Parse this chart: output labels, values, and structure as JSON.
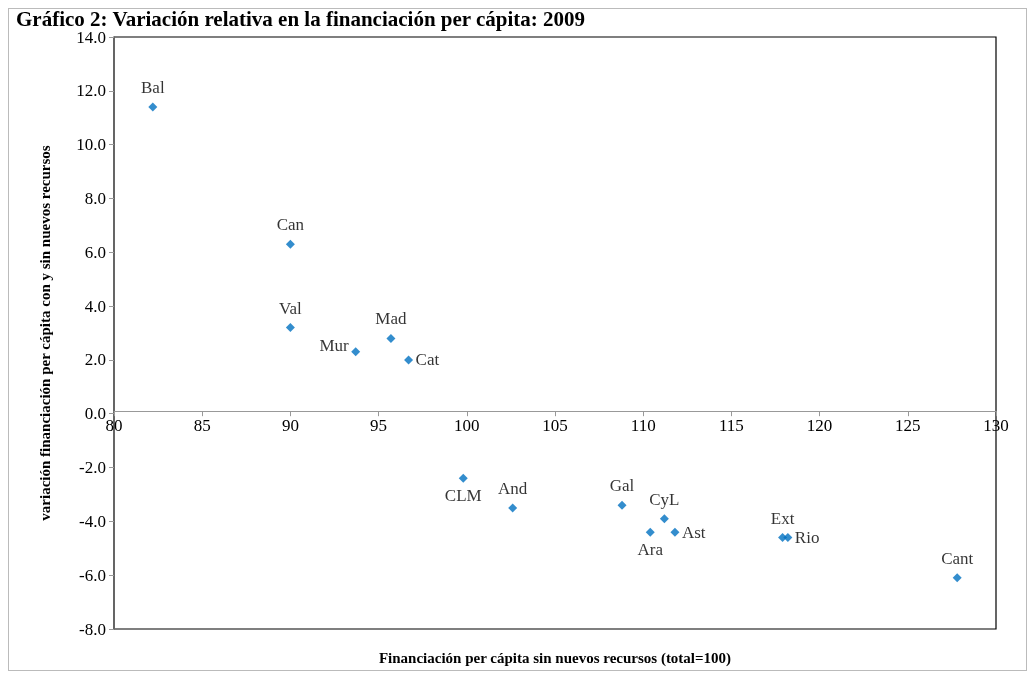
{
  "chart_data": {
    "type": "scatter",
    "title": "Gráfico 2: Variación relativa en la financiación per cápita: 2009",
    "xlabel": "Financiación per cápita sin nuevos recursos (total=100)",
    "ylabel": "variación financiación per cápita con y sin nuevos recursos",
    "x": [
      82.2,
      90.0,
      90.0,
      93.7,
      95.7,
      96.7,
      99.8,
      102.6,
      108.8,
      111.2,
      110.4,
      111.8,
      117.9,
      118.2,
      127.8
    ],
    "series": [
      {
        "color": "#0070c0",
        "values": [
          11.4,
          6.3,
          3.2,
          2.3,
          2.8,
          2.0,
          -2.4,
          -3.5,
          -3.4,
          -3.9,
          -4.4,
          -4.4,
          -4.6,
          -4.6,
          -6.1
        ]
      }
    ],
    "annotations": [
      {
        "text": "Bal",
        "x": 82.2,
        "y": 11.4
      },
      {
        "text": "Can",
        "x": 90.0,
        "y": 6.3
      },
      {
        "text": "Val",
        "x": 90.0,
        "y": 3.2
      },
      {
        "text": "Mur",
        "x": 93.7,
        "y": 2.3
      },
      {
        "text": "Mad",
        "x": 95.7,
        "y": 2.8
      },
      {
        "text": "Cat",
        "x": 96.7,
        "y": 2.0
      },
      {
        "text": "CLM",
        "x": 99.8,
        "y": -2.4
      },
      {
        "text": "And",
        "x": 102.6,
        "y": -3.5
      },
      {
        "text": "Gal",
        "x": 108.8,
        "y": -3.4
      },
      {
        "text": "CyL",
        "x": 111.2,
        "y": -3.9
      },
      {
        "text": "Ara",
        "x": 110.4,
        "y": -4.4
      },
      {
        "text": "Ast",
        "x": 111.8,
        "y": -4.4
      },
      {
        "text": "Ext",
        "x": 117.9,
        "y": -4.6
      },
      {
        "text": "Rio",
        "x": 118.2,
        "y": -4.6
      },
      {
        "text": "Cant",
        "x": 127.8,
        "y": -6.1
      }
    ],
    "xlim": [
      80,
      130
    ],
    "xticks": [
      80,
      85,
      90,
      95,
      100,
      105,
      110,
      115,
      120,
      125,
      130
    ],
    "ylim": [
      -8,
      14
    ],
    "yticks": [
      {
        "value": -8,
        "label": "-8.0"
      },
      {
        "value": -6,
        "label": "-6.0"
      },
      {
        "value": -4,
        "label": "-4.0"
      },
      {
        "value": -2,
        "label": "-2.0"
      },
      {
        "value": 0,
        "label": "0.0"
      },
      {
        "value": 2,
        "label": "2.0"
      },
      {
        "value": 4,
        "label": "4.0"
      },
      {
        "value": 6,
        "label": "6.0"
      },
      {
        "value": 8,
        "label": "8.0"
      },
      {
        "value": 10,
        "label": "10.0"
      },
      {
        "value": 12,
        "label": "12.0"
      },
      {
        "value": 14,
        "label": "14.0"
      }
    ],
    "marker": "diamond"
  }
}
